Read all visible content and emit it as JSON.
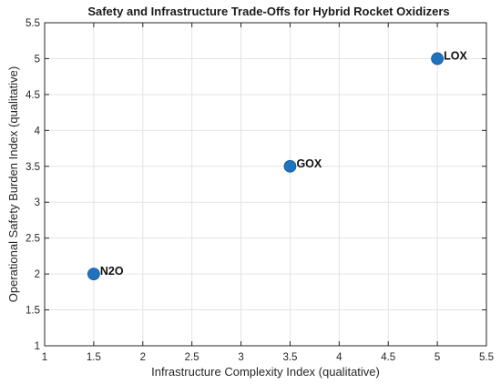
{
  "chart_data": {
    "type": "scatter",
    "title": "Safety and Infrastructure Trade-Offs for Hybrid Rocket Oxidizers",
    "xlabel": "Infrastructure Complexity Index (qualitative)",
    "ylabel": "Operational Safety Burden Index (qualitative)",
    "xlim": [
      1,
      5.5
    ],
    "ylim": [
      1,
      5.5
    ],
    "xticks": [
      "1",
      "1.5",
      "2",
      "2.5",
      "3",
      "3.5",
      "4",
      "4.5",
      "5",
      "5.5"
    ],
    "yticks": [
      "1",
      "1.5",
      "2",
      "2.5",
      "3",
      "3.5",
      "4",
      "4.5",
      "5",
      "5.5"
    ],
    "grid": true,
    "point_color": "#1f72bd",
    "points": [
      {
        "label": "N2O",
        "x": 1.5,
        "y": 2
      },
      {
        "label": "GOX",
        "x": 3.5,
        "y": 3.5
      },
      {
        "label": "LOX",
        "x": 5,
        "y": 5
      }
    ]
  }
}
